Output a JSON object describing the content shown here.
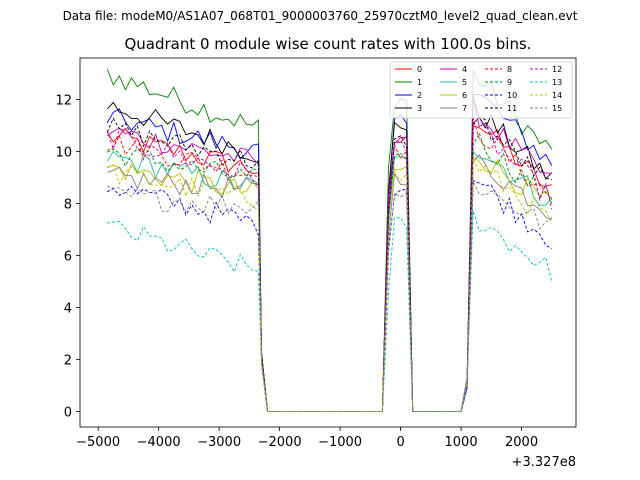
{
  "chart_data": {
    "type": "line",
    "suptitle": "Data file: modeM0/AS1A07_068T01_9000003760_25970cztM0_level2_quad_clean.evt",
    "title": "Quadrant 0 module wise count rates with 100.0s bins.",
    "xlabel": "",
    "ylabel": "",
    "x_offset_label": "+3.327e8",
    "xlim": [
      -5300,
      2900
    ],
    "ylim": [
      -0.6,
      13.6
    ],
    "xticks": [
      -5000,
      -4000,
      -3000,
      -2000,
      -1000,
      0,
      1000,
      2000
    ],
    "xtick_labels": [
      "−5000",
      "−4000",
      "−3000",
      "−2000",
      "−1000",
      "0",
      "1000",
      "2000"
    ],
    "yticks": [
      0,
      2,
      4,
      6,
      8,
      10,
      12
    ],
    "ytick_labels": [
      "0",
      "2",
      "4",
      "6",
      "8",
      "10",
      "12"
    ],
    "legend_location": "upper right",
    "segments": [
      [
        -4850,
        -2350
      ],
      [
        -250,
        150
      ],
      [
        1050,
        2550
      ]
    ],
    "series": [
      {
        "name": "0",
        "color": "#ff0000",
        "style": "solid",
        "start": 10.6,
        "end": 9.3,
        "post_start": 11.3,
        "post_end": 8.3,
        "peak": 10.4
      },
      {
        "name": "1",
        "color": "#008000",
        "style": "solid",
        "start": 13.0,
        "end": 10.9,
        "post_start": 13.0,
        "post_end": 9.8,
        "peak": 12.0
      },
      {
        "name": "2",
        "color": "#0000ff",
        "style": "solid",
        "start": 11.3,
        "end": 10.0,
        "post_start": 12.4,
        "post_end": 9.4,
        "peak": 11.2
      },
      {
        "name": "3",
        "color": "#000000",
        "style": "solid",
        "start": 11.8,
        "end": 9.9,
        "post_start": 11.7,
        "post_end": 8.8,
        "peak": 11.0
      },
      {
        "name": "4",
        "color": "#bf00bf",
        "style": "solid",
        "start": 10.8,
        "end": 9.6,
        "post_start": 11.6,
        "post_end": 8.7,
        "peak": 10.6
      },
      {
        "name": "5",
        "color": "#1abc9c",
        "style": "solid",
        "start": 9.8,
        "end": 8.6,
        "post_start": 10.3,
        "post_end": 7.9,
        "peak": 9.6
      },
      {
        "name": "6",
        "color": "#bfbf00",
        "style": "solid",
        "start": 9.4,
        "end": 8.4,
        "post_start": 10.0,
        "post_end": 7.8,
        "peak": 9.3
      },
      {
        "name": "7",
        "color": "#808080",
        "style": "solid",
        "start": 9.0,
        "end": 8.5,
        "post_start": 9.7,
        "post_end": 7.6,
        "peak": 9.0
      },
      {
        "name": "8",
        "color": "#ff0000",
        "style": "dashed",
        "start": 10.4,
        "end": 9.1,
        "post_start": 11.0,
        "post_end": 8.1,
        "peak": 10.0
      },
      {
        "name": "9",
        "color": "#008000",
        "style": "dashed",
        "start": 10.0,
        "end": 8.9,
        "post_start": 10.6,
        "post_end": 8.0,
        "peak": 9.8
      },
      {
        "name": "10",
        "color": "#0000ff",
        "style": "dashed",
        "start": 8.7,
        "end": 7.2,
        "post_start": 9.0,
        "post_end": 6.5,
        "peak": 8.6
      },
      {
        "name": "11",
        "color": "#000000",
        "style": "dashed",
        "start": 10.9,
        "end": 9.6,
        "post_start": 11.4,
        "post_end": 8.5,
        "peak": 10.4
      },
      {
        "name": "12",
        "color": "#bf00bf",
        "style": "dashed",
        "start": 10.6,
        "end": 9.0,
        "post_start": 11.1,
        "post_end": 8.0,
        "peak": 10.3
      },
      {
        "name": "13",
        "color": "#00bfbf",
        "style": "dashed",
        "start": 7.1,
        "end": 5.4,
        "post_start": 7.5,
        "post_end": 5.3,
        "peak": 7.2
      },
      {
        "name": "14",
        "color": "#bfbf00",
        "style": "dashed",
        "start": 9.2,
        "end": 8.1,
        "post_start": 9.6,
        "post_end": 7.2,
        "peak": 9.0
      },
      {
        "name": "15",
        "color": "#808080",
        "style": "dashed",
        "start": 8.3,
        "end": 7.9,
        "post_start": 8.8,
        "post_end": 7.0,
        "peak": 8.4
      }
    ]
  }
}
